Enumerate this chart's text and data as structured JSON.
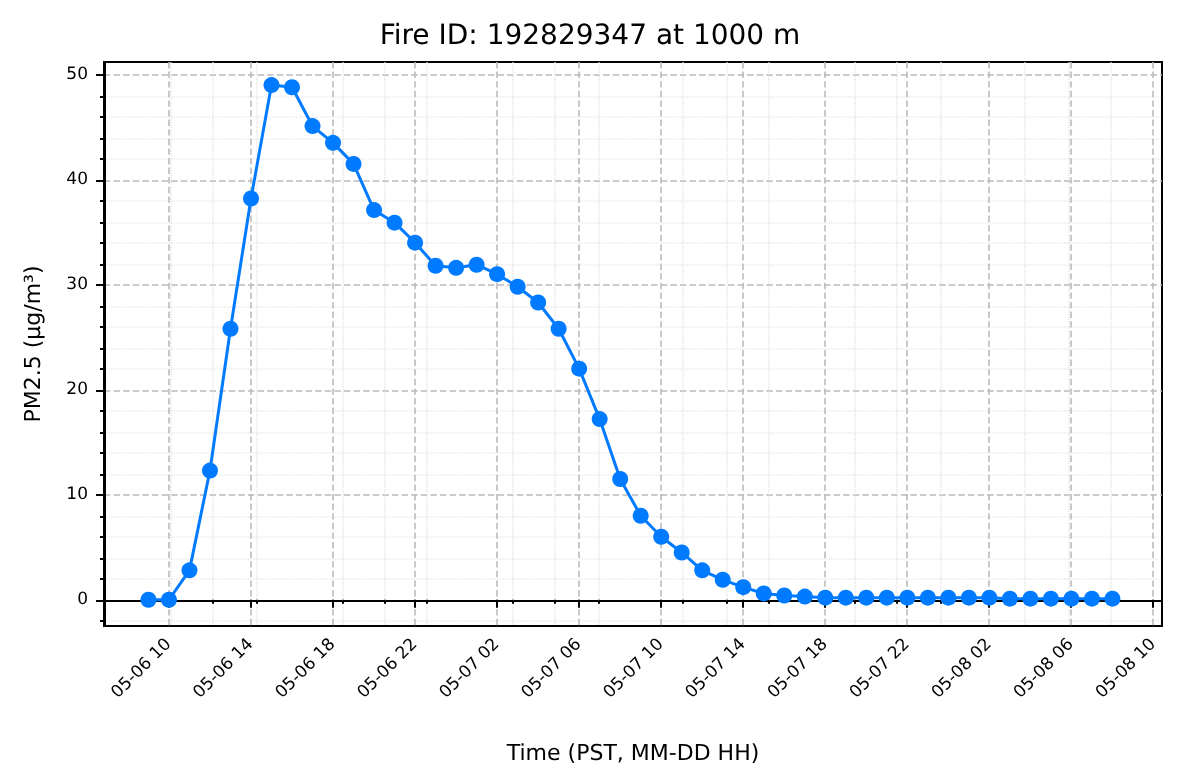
{
  "chart_data": {
    "type": "line",
    "title": "Fire ID: 192829347 at 1000 m",
    "xlabel": "Time (PST, MM-DD HH)",
    "ylabel": "PM2.5 (µg/m³)",
    "x": [
      "--05-06T09:00",
      "--05-06T10:00",
      "--05-06T11:00",
      "--05-06T12:00",
      "--05-06T13:00",
      "--05-06T14:00",
      "--05-06T15:00",
      "--05-06T16:00",
      "--05-06T17:00",
      "--05-06T18:00",
      "--05-06T19:00",
      "--05-06T20:00",
      "--05-06T21:00",
      "--05-06T22:00",
      "--05-06T23:00",
      "--05-07T00:00",
      "--05-07T01:00",
      "--05-07T02:00",
      "--05-07T03:00",
      "--05-07T04:00",
      "--05-07T05:00",
      "--05-07T06:00",
      "--05-07T07:00",
      "--05-07T08:00",
      "--05-07T09:00",
      "--05-07T10:00",
      "--05-07T11:00",
      "--05-07T12:00",
      "--05-07T13:00",
      "--05-07T14:00",
      "--05-07T15:00",
      "--05-07T16:00",
      "--05-07T17:00",
      "--05-07T18:00",
      "--05-07T19:00",
      "--05-07T20:00",
      "--05-07T21:00",
      "--05-07T22:00",
      "--05-07T23:00",
      "--05-08T00:00",
      "--05-08T01:00",
      "--05-08T02:00",
      "--05-08T03:00",
      "--05-08T04:00",
      "--05-08T05:00",
      "--05-08T06:00",
      "--05-08T07:00",
      "--05-08T08:00"
    ],
    "series": [
      {
        "color": "#007bff",
        "values": [
          0,
          0,
          2.8,
          12.3,
          25.8,
          38.2,
          49,
          48.8,
          45.1,
          43.5,
          41.5,
          37.1,
          35.9,
          34.0,
          31.8,
          31.6,
          31.9,
          31.0,
          29.8,
          28.3,
          25.8,
          22.0,
          17.2,
          11.5,
          8.0,
          6.0,
          4.5,
          2.8,
          1.9,
          1.2,
          0.6,
          0.4,
          0.3,
          0.2,
          0.2,
          0.2,
          0.2,
          0.2,
          0.2,
          0.2,
          0.2,
          0.2,
          0.1,
          0.1,
          0.1,
          0.1,
          0.1,
          0.1
        ]
      }
    ],
    "xlim": [
      "--05-06T06:50",
      "--05-08T10:25"
    ],
    "xticks": [
      {
        "value": "--05-06T10:00",
        "label": "05-06 10"
      },
      {
        "value": "--05-06T14:00",
        "label": "05-06 14"
      },
      {
        "value": "--05-06T18:00",
        "label": "05-06 18"
      },
      {
        "value": "--05-06T22:00",
        "label": "05-06 22"
      },
      {
        "value": "--05-07T02:00",
        "label": "05-07 02"
      },
      {
        "value": "--05-07T06:00",
        "label": "05-07 06"
      },
      {
        "value": "--05-07T10:00",
        "label": "05-07 10"
      },
      {
        "value": "--05-07T14:00",
        "label": "05-07 14"
      },
      {
        "value": "--05-07T18:00",
        "label": "05-07 18"
      },
      {
        "value": "--05-07T22:00",
        "label": "05-07 22"
      },
      {
        "value": "--05-08T02:00",
        "label": "05-08 02"
      },
      {
        "value": "--05-08T06:00",
        "label": "05-08 06"
      },
      {
        "value": "--05-08T10:00",
        "label": "05-08 10"
      }
    ],
    "ylim": [
      -2.5,
      51.2
    ],
    "yticks": [
      0,
      10,
      20,
      30,
      40,
      50
    ],
    "grid": true,
    "marker": "circle",
    "line_style": "solid"
  }
}
